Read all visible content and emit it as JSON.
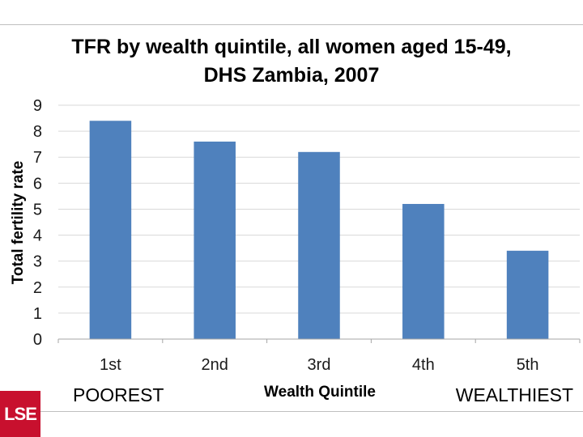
{
  "chart_data": {
    "type": "bar",
    "title_line1": "TFR by wealth quintile, all women aged 15-49,",
    "title_line2": "DHS Zambia, 2007",
    "xlabel": "Wealth Quintile",
    "ylabel": "Total fertility rate",
    "categories": [
      "1st",
      "2nd",
      "3rd",
      "4th",
      "5th"
    ],
    "values": [
      8.4,
      7.6,
      7.2,
      5.2,
      3.4
    ],
    "ylim": [
      0,
      9
    ],
    "yticks": [
      "0",
      "1",
      "2",
      "3",
      "4",
      "5",
      "6",
      "7",
      "8",
      "9"
    ],
    "bar_color": "#4f81bd",
    "grid": true,
    "legend": "none",
    "left_note": "POOREST",
    "right_note": "WEALTHIEST"
  },
  "logo": {
    "text": "LSE",
    "color": "#c8102e"
  }
}
